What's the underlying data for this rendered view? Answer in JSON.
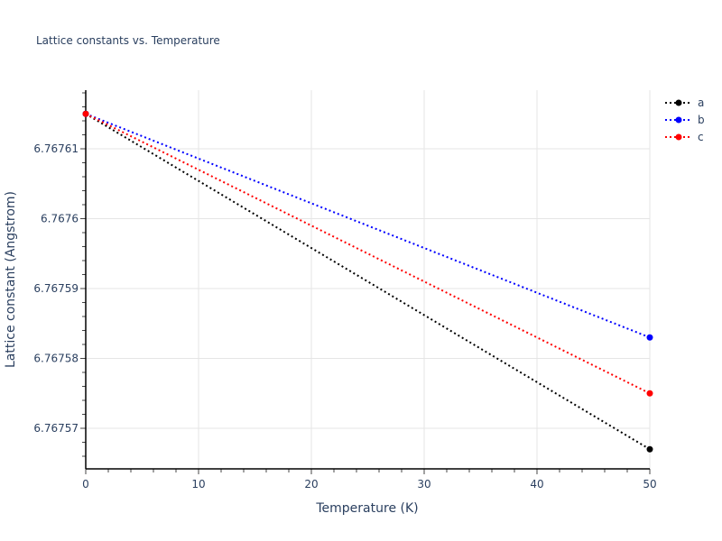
{
  "chart_data": {
    "type": "line",
    "title": "Lattice constants vs. Temperature",
    "xlabel": "Temperature (K)",
    "ylabel": "Lattice constant (Angstrom)",
    "x": [
      0,
      50
    ],
    "xlim": [
      0,
      50
    ],
    "ylim": [
      6.767564,
      6.767619
    ],
    "xticks": [
      0,
      10,
      20,
      30,
      40,
      50
    ],
    "yticks": [
      6.76757,
      6.76758,
      6.76759,
      6.7676,
      6.76761
    ],
    "ytick_labels": [
      "6.76757",
      "6.76758",
      "6.76759",
      "6.7676",
      "6.76761"
    ],
    "grid": true,
    "legend_position": "top-right",
    "series": [
      {
        "name": "a",
        "color": "#000000",
        "dash": "dot",
        "values": [
          6.767615,
          6.767567
        ]
      },
      {
        "name": "b",
        "color": "#0000ff",
        "dash": "dot",
        "values": [
          6.767615,
          6.767583
        ]
      },
      {
        "name": "c",
        "color": "#ff0000",
        "dash": "dot",
        "values": [
          6.767615,
          6.767575
        ]
      }
    ]
  }
}
